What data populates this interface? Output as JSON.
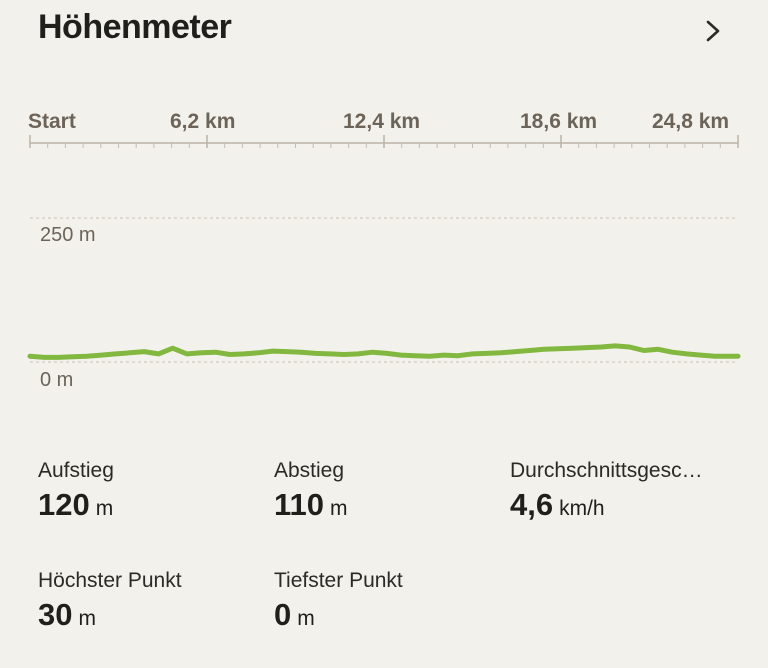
{
  "header": {
    "title": "Höhenmeter",
    "chevron_icon": "chevron-right-icon"
  },
  "chart_data": {
    "type": "area",
    "title": "Höhenmeter",
    "x_tick_labels": [
      "Start",
      "6,2 km",
      "12,4 km",
      "18,6 km",
      "24,8 km"
    ],
    "x_ticks_km": [
      0,
      6.2,
      12.4,
      18.6,
      24.8
    ],
    "xlim": [
      0,
      24.8
    ],
    "y_tick_labels": [
      "250 m",
      "0 m"
    ],
    "y_ticks": [
      250,
      0
    ],
    "ylim": [
      0,
      250
    ],
    "xlabel": "",
    "ylabel": "",
    "grid": true,
    "line_color": "#83b840",
    "series": [
      {
        "x": [
          0,
          0.5,
          1.0,
          1.5,
          2.0,
          2.5,
          3.0,
          3.5,
          4.0,
          4.5,
          5.0,
          5.5,
          6.0,
          6.5,
          7.0,
          7.5,
          8.0,
          8.5,
          9.0,
          9.5,
          10.0,
          10.5,
          11.0,
          11.5,
          12.0,
          12.5,
          13.0,
          13.5,
          14.0,
          14.5,
          15.0,
          15.5,
          16.0,
          16.5,
          17.0,
          17.5,
          18.0,
          18.5,
          19.0,
          19.5,
          20.0,
          20.5,
          21.0,
          21.5,
          22.0,
          22.5,
          23.0,
          23.5,
          24.0,
          24.8
        ],
        "values": [
          10,
          8,
          8,
          9,
          10,
          12,
          14,
          16,
          18,
          14,
          24,
          14,
          16,
          17,
          13,
          14,
          16,
          19,
          18,
          17,
          15,
          14,
          13,
          14,
          17,
          15,
          12,
          11,
          10,
          12,
          11,
          14,
          15,
          16,
          18,
          20,
          22,
          23,
          24,
          25,
          26,
          28,
          26,
          20,
          22,
          17,
          14,
          12,
          10,
          10
        ]
      }
    ]
  },
  "stats": {
    "ascent": {
      "label": "Aufstieg",
      "value": "120",
      "unit": "m"
    },
    "descent": {
      "label": "Abstieg",
      "value": "110",
      "unit": "m"
    },
    "avg_speed": {
      "label": "Durchschnittsgesc…",
      "value": "4,6",
      "unit": "km/h"
    },
    "highest": {
      "label": "Höchster Punkt",
      "value": "30",
      "unit": "m"
    },
    "lowest": {
      "label": "Tiefster Punkt",
      "value": "0",
      "unit": "m"
    }
  }
}
